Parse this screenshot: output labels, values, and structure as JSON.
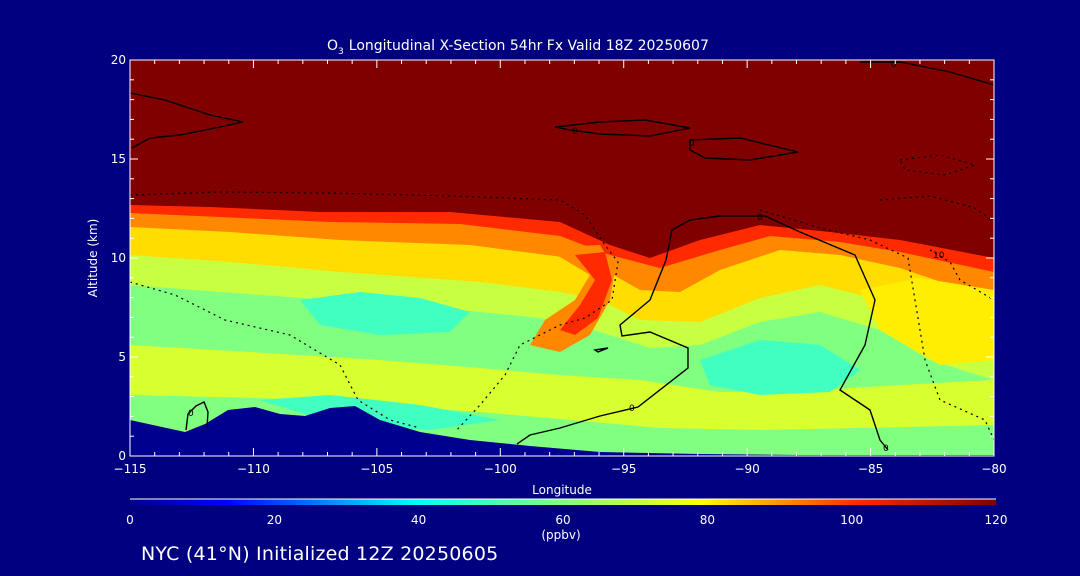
{
  "colors": {
    "background": "#000080",
    "axis": "#ffffff",
    "terrain": "#00008f",
    "contour": "#000000"
  },
  "chart_data": {
    "type": "heatmap",
    "title_main": "Longitudinal X-Section 54hr  Fx Valid 18Z 20250607",
    "title_species": "O",
    "title_subscript": "3",
    "xlabel": "Longitude",
    "ylabel": "Altitude (km)",
    "xlim": [
      -115,
      -80
    ],
    "ylim": [
      0,
      20
    ],
    "x_ticks": [
      -115,
      -110,
      -105,
      -100,
      -95,
      -90,
      -85,
      -80
    ],
    "x_tick_labels": [
      "−115",
      "−110",
      "−105",
      "−100",
      "−95",
      "−90",
      "−85",
      "−80"
    ],
    "y_ticks": [
      0,
      5,
      10,
      15,
      20
    ],
    "y_tick_labels": [
      "0",
      "5",
      "10",
      "15",
      "20"
    ],
    "colorbar": {
      "min": 0,
      "max": 120,
      "ticks": [
        0,
        20,
        40,
        60,
        80,
        100,
        120
      ],
      "tick_labels": [
        "0",
        "20",
        "40",
        "60",
        "80",
        "100",
        "120"
      ],
      "unit_label": "(ppbv)"
    },
    "contour_labels": [
      "0",
      "0",
      "0",
      "0",
      "0",
      "0",
      "0",
      "10"
    ],
    "tropopause_height_km": [
      [
        -115,
        12.3
      ],
      [
        -110,
        12.3
      ],
      [
        -105,
        12.0
      ],
      [
        -100,
        11.9
      ],
      [
        -97,
        11.5
      ],
      [
        -96,
        10.0
      ],
      [
        -94,
        9.6
      ],
      [
        -92,
        10.0
      ],
      [
        -90,
        11.2
      ],
      [
        -88,
        11.4
      ],
      [
        -85,
        11.2
      ],
      [
        -82,
        10.5
      ],
      [
        -80,
        9.8
      ]
    ],
    "terrain_height_km": [
      [
        -115,
        1.6
      ],
      [
        -113,
        1.3
      ],
      [
        -111.5,
        2.2
      ],
      [
        -110,
        2.4
      ],
      [
        -108,
        2.0
      ],
      [
        -106,
        2.4
      ],
      [
        -104,
        1.8
      ],
      [
        -100,
        1.0
      ],
      [
        -95,
        0.5
      ],
      [
        -90,
        0.15
      ],
      [
        -85,
        0.1
      ],
      [
        -80,
        0.1
      ]
    ]
  },
  "footer": {
    "text": "NYC (41°N) Initialized 12Z 20250605"
  }
}
